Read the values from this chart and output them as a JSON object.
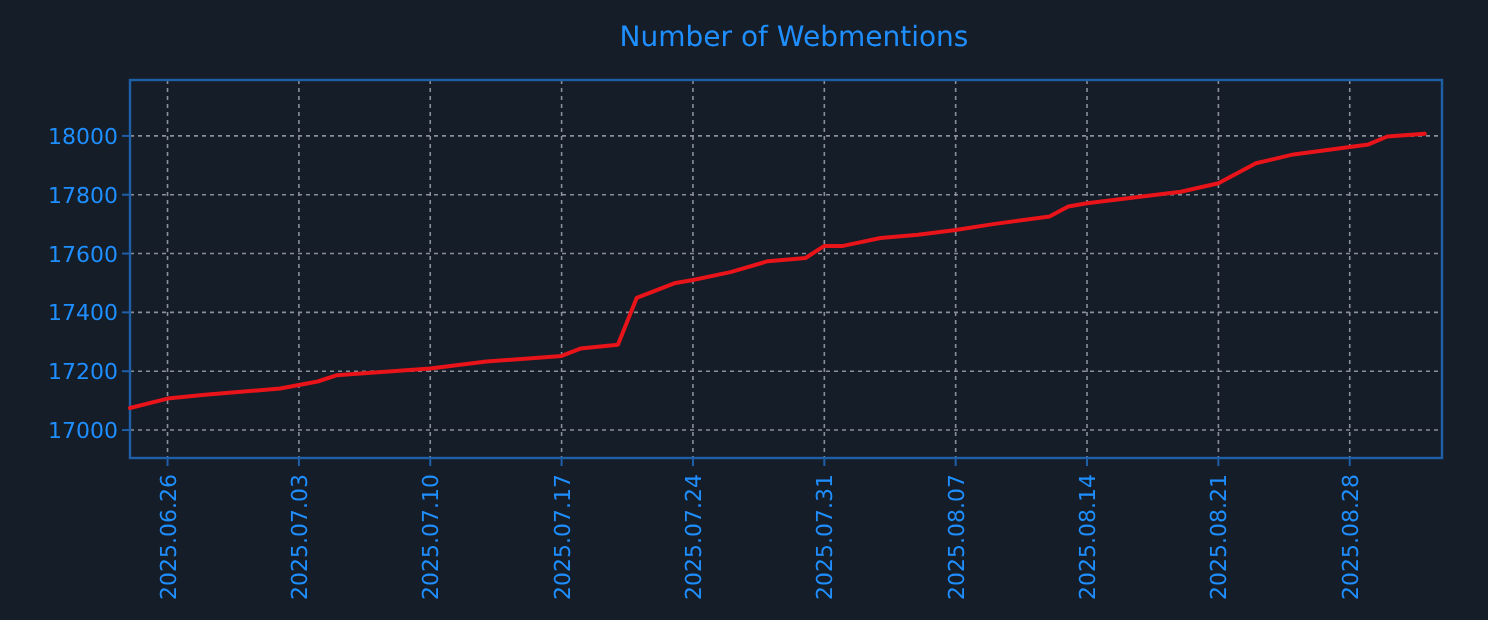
{
  "chart_data": {
    "type": "line",
    "title": "Number of Webmentions",
    "x": [
      "2025-06-24",
      "2025-06-26",
      "2025-06-28",
      "2025-07-02",
      "2025-07-04",
      "2025-07-05",
      "2025-07-10",
      "2025-07-13",
      "2025-07-17",
      "2025-07-18",
      "2025-07-20",
      "2025-07-21",
      "2025-07-23",
      "2025-07-24",
      "2025-07-26",
      "2025-07-28",
      "2025-07-30",
      "2025-07-31",
      "2025-08-01",
      "2025-08-03",
      "2025-08-05",
      "2025-08-07",
      "2025-08-09",
      "2025-08-12",
      "2025-08-13",
      "2025-08-14",
      "2025-08-19",
      "2025-08-21",
      "2025-08-23",
      "2025-08-25",
      "2025-08-29",
      "2025-08-30",
      "2025-09-01"
    ],
    "series": [
      {
        "color": "#e8141a",
        "values": [
          17075,
          17107,
          17120,
          17141,
          17165,
          17186,
          17209,
          17233,
          17252,
          17277,
          17290,
          17449,
          17499,
          17510,
          17537,
          17574,
          17585,
          17626,
          17626,
          17653,
          17664,
          17680,
          17700,
          17726,
          17760,
          17771,
          17810,
          17839,
          17907,
          17937,
          17971,
          17998,
          18007
        ]
      }
    ],
    "xlim": [
      "2025-06-24",
      "2025-09-01T22:00"
    ],
    "ylim": [
      16905,
      18190
    ],
    "xticks": [
      {
        "value": "2025-06-26",
        "label": "2025.06.26"
      },
      {
        "value": "2025-07-03",
        "label": "2025.07.03"
      },
      {
        "value": "2025-07-10",
        "label": "2025.07.10"
      },
      {
        "value": "2025-07-17",
        "label": "2025.07.17"
      },
      {
        "value": "2025-07-24",
        "label": "2025.07.24"
      },
      {
        "value": "2025-07-31",
        "label": "2025.07.31"
      },
      {
        "value": "2025-08-07",
        "label": "2025.08.07"
      },
      {
        "value": "2025-08-14",
        "label": "2025.08.14"
      },
      {
        "value": "2025-08-21",
        "label": "2025.08.21"
      },
      {
        "value": "2025-08-28",
        "label": "2025.08.28"
      }
    ],
    "yticks": [
      17000,
      17200,
      17400,
      17600,
      17800,
      18000
    ],
    "grid": true,
    "marker": "none",
    "line_style": "solid"
  }
}
